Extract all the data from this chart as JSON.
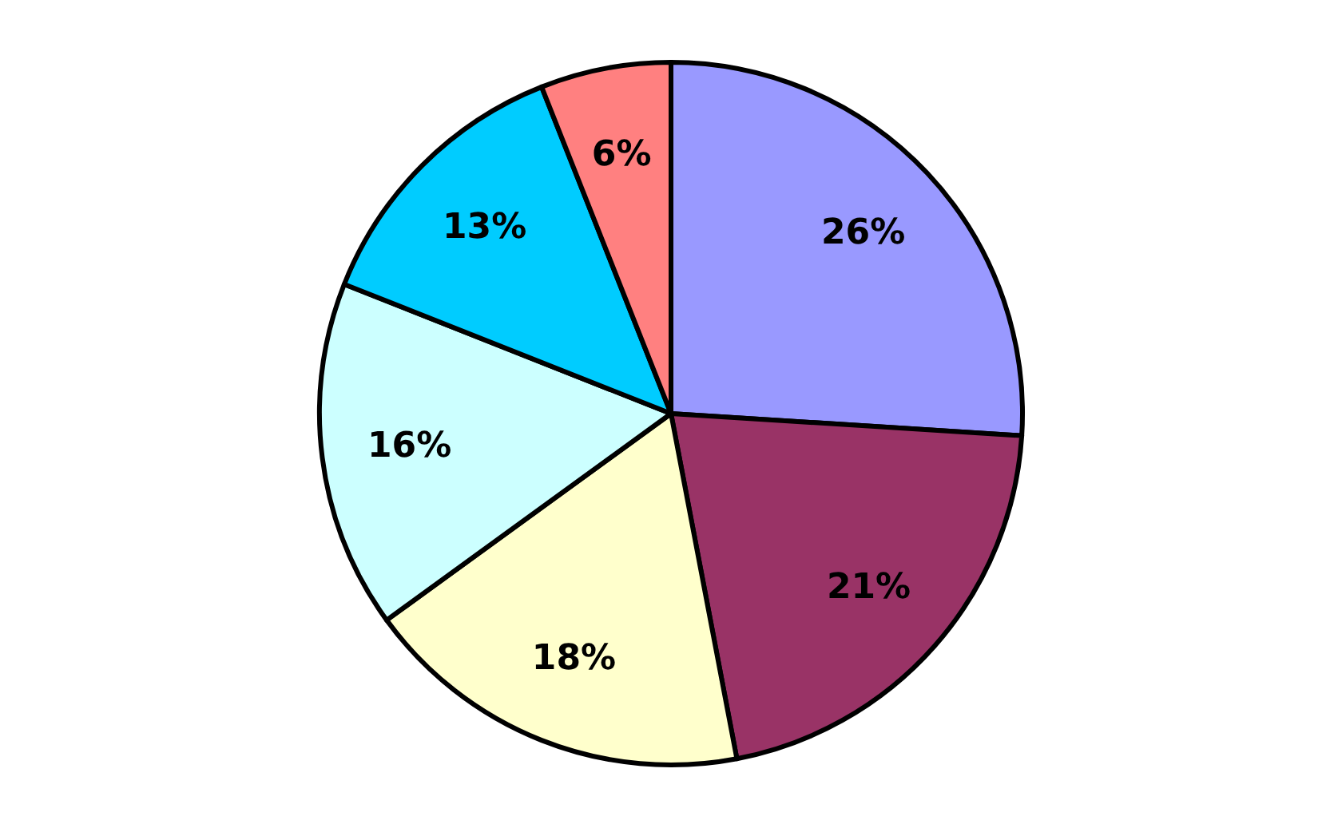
{
  "chart_data": {
    "type": "pie",
    "categories": [
      null,
      null,
      null,
      null,
      null,
      null
    ],
    "values": [
      26,
      21,
      18,
      16,
      13,
      6
    ],
    "colors": [
      "#9999ff",
      "#993366",
      "#ffffcc",
      "#ccffff",
      "#00ccff",
      "#ff8080"
    ],
    "value_labels": [
      "26%",
      "21%",
      "18%",
      "16%",
      "13%",
      "6%"
    ]
  }
}
